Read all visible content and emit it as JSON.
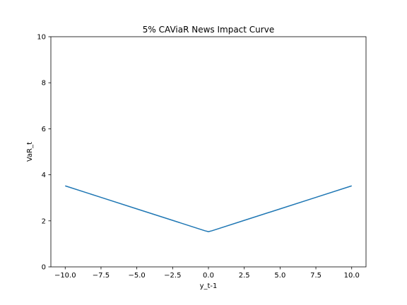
{
  "chart_data": {
    "type": "line",
    "title": "5% CAViaR News Impact Curve",
    "xlabel": "y_t-1",
    "ylabel": "VaR_t",
    "xlim": [
      -11.0,
      11.0
    ],
    "ylim": [
      0,
      10
    ],
    "xticks": [
      -10.0,
      -7.5,
      -5.0,
      -2.5,
      0.0,
      2.5,
      5.0,
      7.5,
      10.0
    ],
    "xtick_labels": [
      "−10.0",
      "−7.5",
      "−5.0",
      "−2.5",
      "0.0",
      "2.5",
      "5.0",
      "7.5",
      "10.0"
    ],
    "yticks": [
      0,
      2,
      4,
      6,
      8,
      10
    ],
    "ytick_labels": [
      "0",
      "2",
      "4",
      "6",
      "8",
      "10"
    ],
    "grid": false,
    "series": [
      {
        "color": "#1f77b4",
        "x": [
          -10,
          -7.5,
          -5,
          -2.5,
          -0.5,
          -0.25,
          0,
          0.25,
          0.5,
          2.5,
          5,
          7.5,
          10
        ],
        "y": [
          3.52,
          3.02,
          2.52,
          2.02,
          1.62,
          1.57,
          1.53,
          1.57,
          1.62,
          2.02,
          2.52,
          3.02,
          3.52
        ]
      }
    ]
  }
}
